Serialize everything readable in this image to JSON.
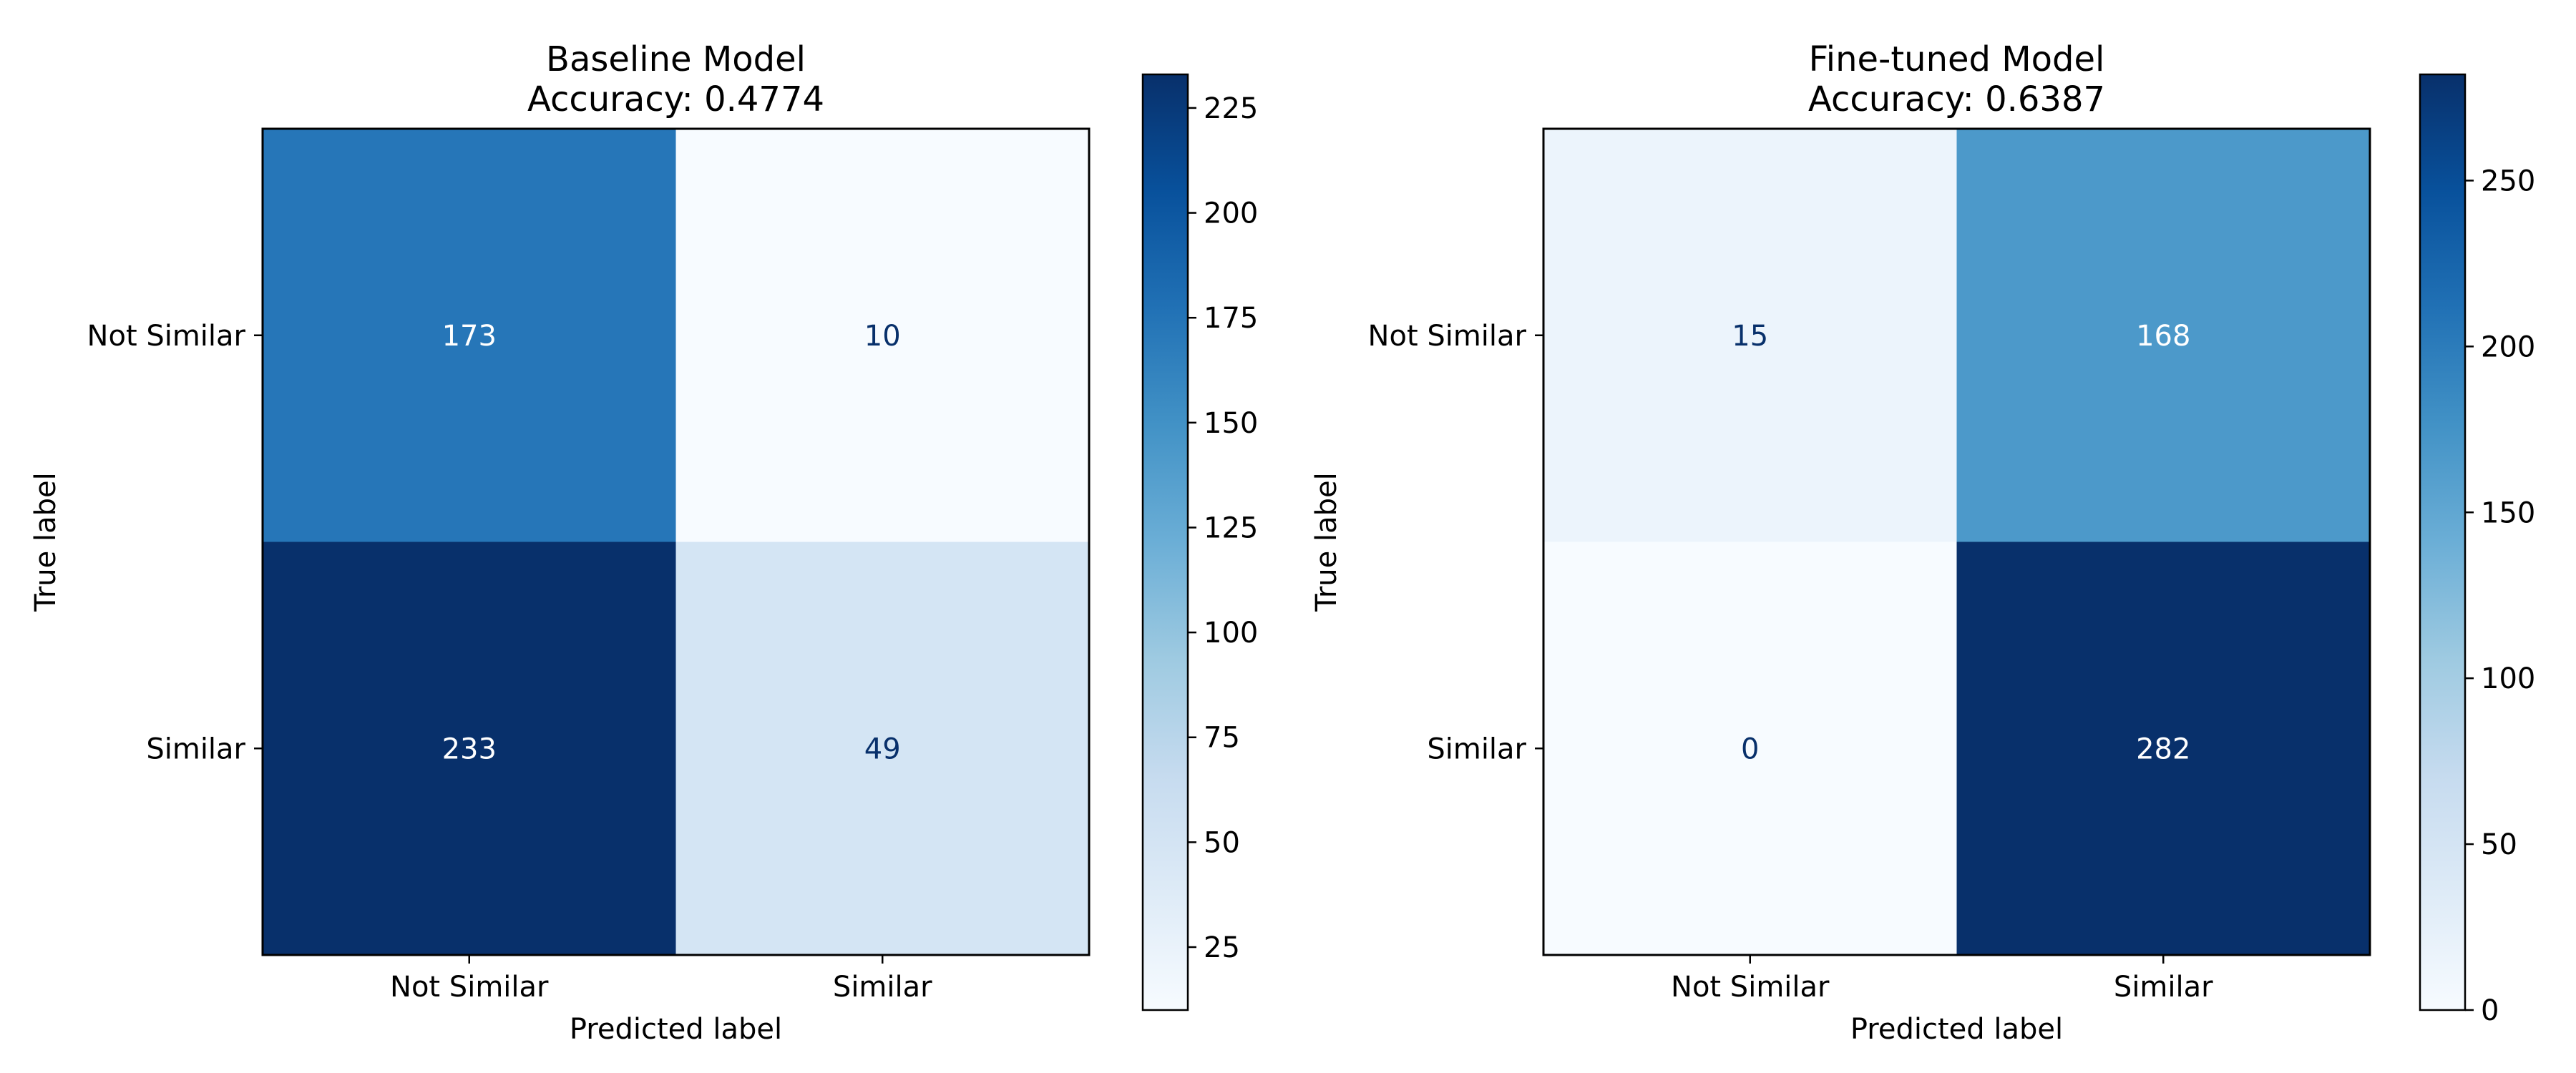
{
  "chart_data": [
    {
      "type": "heatmap",
      "title": "Baseline Model",
      "subtitle": "Accuracy: 0.4774",
      "xlabel": "Predicted label",
      "ylabel": "True label",
      "x_categories": [
        "Not Similar",
        "Similar"
      ],
      "y_categories": [
        "Not Similar",
        "Similar"
      ],
      "values": [
        [
          173,
          10
        ],
        [
          233,
          49
        ]
      ],
      "colormap": "Blues",
      "color_range": [
        10,
        233
      ],
      "colorbar_ticks": [
        25,
        50,
        75,
        100,
        125,
        150,
        175,
        200,
        225
      ],
      "grid": false
    },
    {
      "type": "heatmap",
      "title": "Fine-tuned Model",
      "subtitle": "Accuracy: 0.6387",
      "xlabel": "Predicted label",
      "ylabel": "True label",
      "x_categories": [
        "Not Similar",
        "Similar"
      ],
      "y_categories": [
        "Not Similar",
        "Similar"
      ],
      "values": [
        [
          15,
          168
        ],
        [
          0,
          282
        ]
      ],
      "colormap": "Blues",
      "color_range": [
        0,
        282
      ],
      "colorbar_ticks": [
        0,
        50,
        100,
        150,
        200,
        250
      ],
      "grid": false
    }
  ]
}
